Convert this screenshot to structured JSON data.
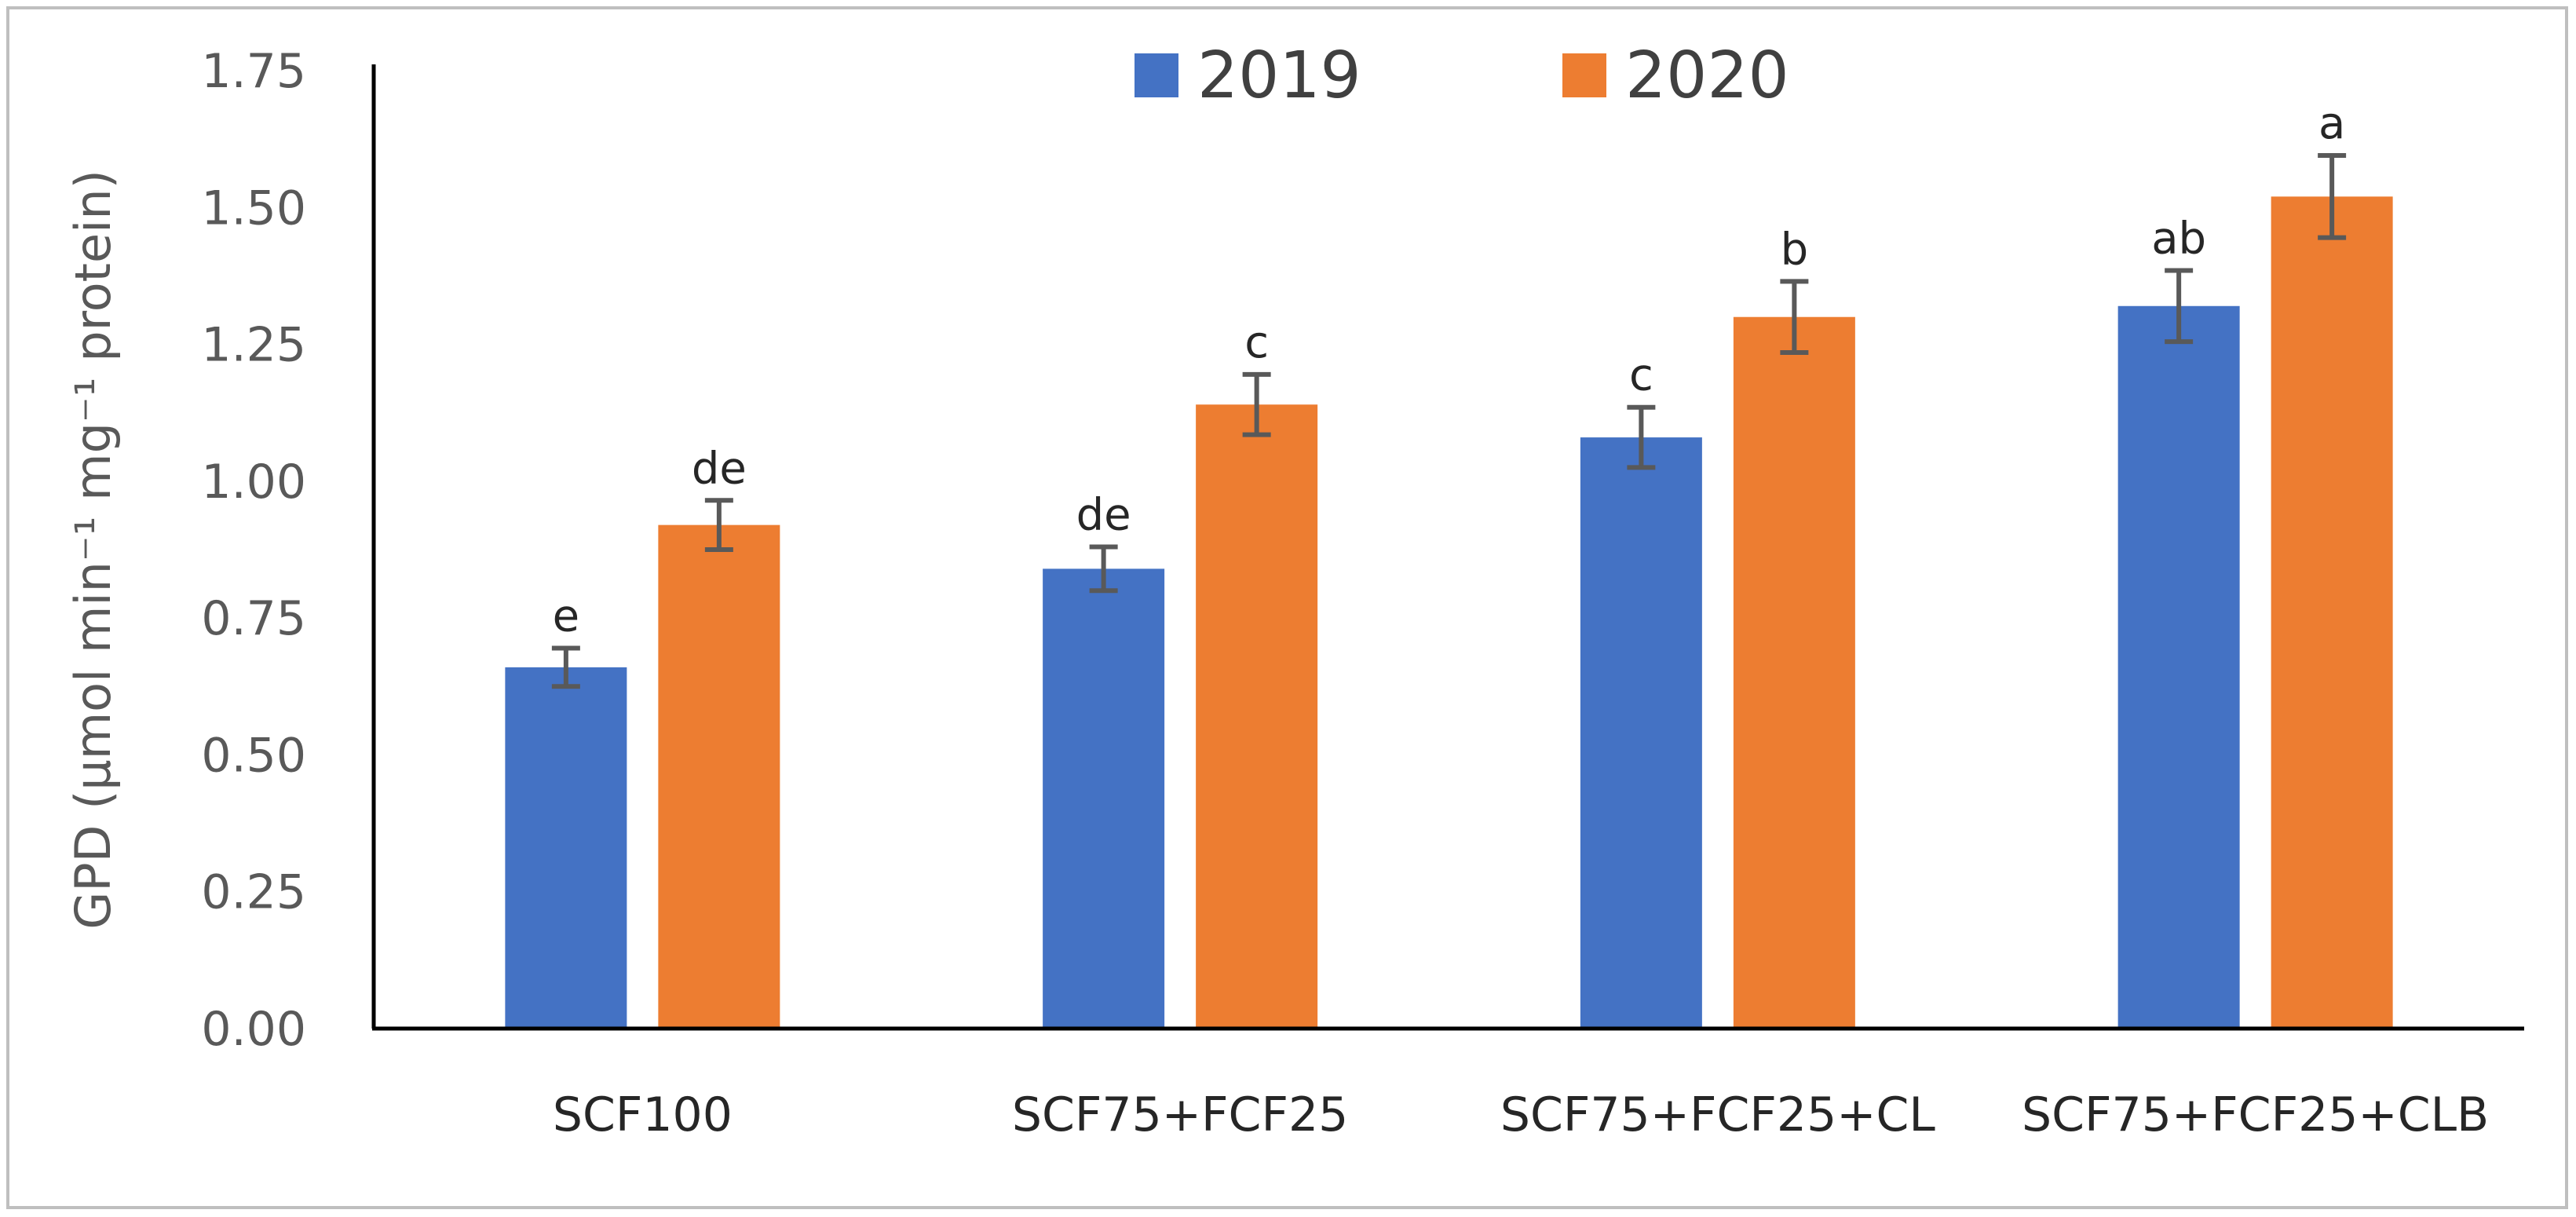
{
  "chart_data": {
    "type": "bar",
    "title": "",
    "xlabel": "",
    "ylabel": "GPD (µmol min⁻¹ mg⁻¹ protein)",
    "ylim": [
      0,
      1.75
    ],
    "yticks": [
      "0.00",
      "0.25",
      "0.50",
      "0.75",
      "1.00",
      "1.25",
      "1.50",
      "1.75"
    ],
    "grid": false,
    "legend_position": "top-center",
    "categories": [
      "SCF100",
      "SCF75+FCF25",
      "SCF75+FCF25+CL",
      "SCF75+FCF25+CLB"
    ],
    "series": [
      {
        "name": "2019",
        "color": "#4472c4",
        "values": [
          0.66,
          0.84,
          1.08,
          1.32
        ],
        "errors": [
          0.035,
          0.04,
          0.055,
          0.065
        ],
        "significance": [
          "e",
          "de",
          "c",
          "ab"
        ]
      },
      {
        "name": "2020",
        "color": "#ed7d31",
        "values": [
          0.92,
          1.14,
          1.3,
          1.52
        ],
        "errors": [
          0.045,
          0.055,
          0.065,
          0.075
        ],
        "significance": [
          "de",
          "c",
          "b",
          "a"
        ]
      }
    ],
    "error_bar_color": "#595959",
    "axis_color": "#000000"
  }
}
